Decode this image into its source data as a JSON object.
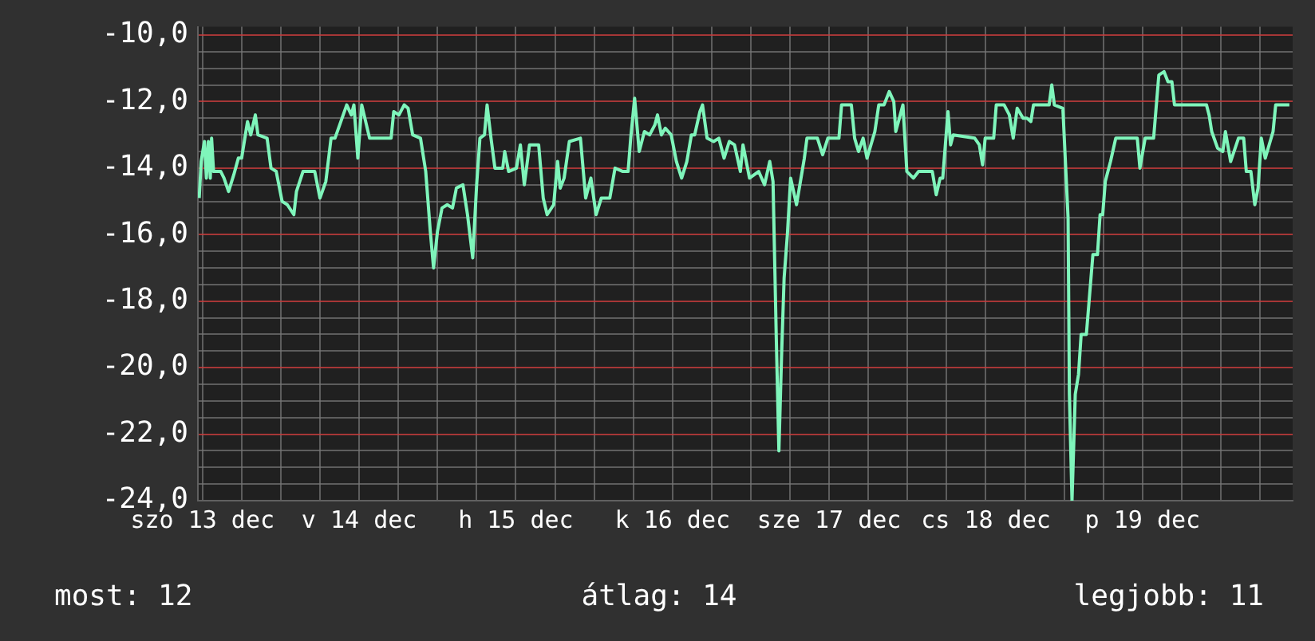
{
  "chart_data": {
    "type": "line",
    "marker": "none",
    "grid": true,
    "annotations": [
      "most: 12",
      "átlag: 14",
      "legjobb: 11"
    ],
    "x": [
      "--12-12T23:30",
      "--12-12T23:48",
      "--12-13T00:18",
      "--12-13T00:36",
      "--12-13T00:54",
      "--12-13T01:12",
      "--12-13T01:24",
      "--12-13T01:42",
      "--12-13T02:48",
      "--12-13T03:18",
      "--12-13T04:00",
      "--12-13T04:48",
      "--12-13T05:30",
      "--12-13T06:00",
      "--12-13T06:54",
      "--12-13T07:24",
      "--12-13T08:06",
      "--12-13T08:30",
      "--12-13T09:54",
      "--12-13T10:30",
      "--12-13T11:18",
      "--12-13T12:12",
      "--12-13T13:00",
      "--12-13T14:00",
      "--12-13T14:24",
      "--12-13T15:24",
      "--12-13T17:12",
      "--12-13T18:00",
      "--12-13T18:54",
      "--12-13T19:42",
      "--12-13T20:18",
      "--12-13T22:06",
      "--12-13T22:48",
      "--12-13T23:12",
      "--12-13T23:48",
      "--12-14T00:24",
      "--12-14T01:36",
      "--12-14T04:54",
      "--12-14T05:18",
      "--12-14T06:06",
      "--12-14T06:54",
      "--12-14T07:30",
      "--12-14T08:12",
      "--12-14T09:24",
      "--12-14T10:12",
      "--12-14T10:54",
      "--12-14T11:24",
      "--12-14T12:00",
      "--12-14T12:42",
      "--12-14T13:30",
      "--12-14T14:18",
      "--12-14T14:54",
      "--12-14T15:54",
      "--12-14T16:36",
      "--12-14T17:24",
      "--12-14T18:00",
      "--12-14T18:30",
      "--12-14T19:12",
      "--12-14T19:36",
      "--12-14T20:12",
      "--12-14T20:48",
      "--12-14T22:00",
      "--12-14T22:18",
      "--12-14T22:54",
      "--12-15T00:06",
      "--12-15T00:42",
      "--12-15T01:18",
      "--12-15T02:06",
      "--12-15T02:42",
      "--12-15T03:30",
      "--12-15T04:12",
      "--12-15T04:48",
      "--12-15T05:48",
      "--12-15T06:24",
      "--12-15T06:48",
      "--12-15T07:24",
      "--12-15T08:12",
      "--12-15T09:54",
      "--12-15T10:42",
      "--12-15T11:30",
      "--12-15T12:18",
      "--12-15T13:06",
      "--12-15T14:24",
      "--12-15T15:12",
      "--12-15T16:24",
      "--12-15T17:12",
      "--12-15T17:36",
      "--12-15T18:12",
      "--12-15T18:54",
      "--12-15T19:42",
      "--12-15T20:30",
      "--12-15T21:18",
      "--12-15T21:42",
      "--12-15T22:18",
      "--12-15T22:54",
      "--12-15T23:48",
      "--12-16T00:36",
      "--12-16T01:24",
      "--12-16T02:12",
      "--12-16T02:54",
      "--12-16T03:24",
      "--12-16T04:12",
      "--12-16T04:36",
      "--12-16T05:18",
      "--12-16T06:18",
      "--12-16T07:06",
      "--12-16T07:54",
      "--12-16T08:42",
      "--12-16T09:30",
      "--12-16T10:24",
      "--12-16T10:48",
      "--12-16T11:48",
      "--12-16T13:12",
      "--12-16T14:06",
      "--12-16T14:54",
      "--12-16T15:24",
      "--12-16T15:54",
      "--12-16T16:18",
      "--12-16T16:42",
      "--12-16T17:06",
      "--12-16T17:36",
      "--12-16T18:06",
      "--12-16T19:00",
      "--12-16T20:12",
      "--12-16T20:36",
      "--12-16T22:12",
      "--12-16T23:00",
      "--12-16T23:48",
      "--12-17T01:30",
      "--12-17T01:54",
      "--12-17T03:24",
      "--12-17T03:54",
      "--12-17T04:30",
      "--12-17T05:12",
      "--12-17T05:48",
      "--12-17T07:00",
      "--12-17T07:36",
      "--12-17T08:24",
      "--12-17T09:12",
      "--12-17T09:54",
      "--12-17T10:12",
      "--12-17T11:18",
      "--12-17T11:54",
      "--12-17T12:54",
      "--12-17T13:42",
      "--12-17T15:48",
      "--12-17T16:24",
      "--12-17T17:00",
      "--12-17T17:24",
      "--12-17T18:12",
      "--12-17T18:36",
      "--12-17T19:00",
      "--12-17T22:18",
      "--12-17T23:00",
      "--12-17T23:30",
      "--12-17T23:54",
      "--12-18T01:12",
      "--12-18T01:36",
      "--12-18T02:48",
      "--12-18T03:36",
      "--12-18T04:12",
      "--12-18T04:48",
      "--12-18T05:42",
      "--12-18T06:18",
      "--12-18T06:54",
      "--12-18T07:18",
      "--12-18T09:42",
      "--12-18T10:06",
      "--12-18T10:30",
      "--12-18T11:48",
      "--12-18T12:36",
      "--12-18T12:48",
      "--12-18T13:12",
      "--12-18T13:42",
      "--12-18T14:12",
      "--12-18T14:36",
      "--12-18T15:24",
      "--12-18T15:54",
      "--12-18T16:24",
      "--12-18T17:06",
      "--12-18T17:30",
      "--12-18T17:54",
      "--12-18T18:18",
      "--12-18T19:06",
      "--12-18T19:54",
      "--12-18T23:12",
      "--12-18T23:36",
      "--12-19T00:24",
      "--12-19T01:42",
      "--12-19T02:30",
      "--12-19T03:18",
      "--12-19T03:54",
      "--12-19T04:30",
      "--12-19T04:54",
      "--12-19T09:48",
      "--12-19T10:12",
      "--12-19T10:36",
      "--12-19T11:30",
      "--12-19T12:18",
      "--12-19T12:42",
      "--12-19T13:30",
      "--12-19T14:42",
      "--12-19T15:30",
      "--12-19T15:54",
      "--12-19T16:36",
      "--12-19T17:12",
      "--12-19T17:42",
      "--12-19T18:12",
      "--12-19T18:48",
      "--12-19T20:00",
      "--12-19T20:24",
      "--12-19T22:30"
    ],
    "series": [
      {
        "color": "#7ff5bb",
        "values": [
          -14.9,
          -13.8,
          -13.2,
          -14.3,
          -13.2,
          -14.3,
          -13.1,
          -14.1,
          -14.1,
          -14.3,
          -14.7,
          -14.2,
          -13.7,
          -13.7,
          -12.6,
          -13.0,
          -12.4,
          -13.0,
          -13.1,
          -14.0,
          -14.1,
          -15.0,
          -15.1,
          -15.4,
          -14.7,
          -14.1,
          -14.1,
          -14.9,
          -14.4,
          -13.1,
          -13.1,
          -12.1,
          -12.4,
          -12.1,
          -13.7,
          -12.1,
          -13.1,
          -13.1,
          -12.3,
          -12.4,
          -12.1,
          -12.2,
          -13.0,
          -13.1,
          -14.1,
          -15.9,
          -17.0,
          -15.9,
          -15.2,
          -15.1,
          -15.2,
          -14.6,
          -14.5,
          -15.4,
          -16.7,
          -14.5,
          -13.1,
          -13.0,
          -12.1,
          -13.1,
          -14.0,
          -14.0,
          -13.5,
          -14.1,
          -14.0,
          -13.3,
          -14.5,
          -13.3,
          -13.3,
          -13.3,
          -14.9,
          -15.4,
          -15.1,
          -13.8,
          -14.6,
          -14.3,
          -13.2,
          -13.1,
          -14.9,
          -14.3,
          -15.4,
          -14.9,
          -14.9,
          -14.0,
          -14.1,
          -14.1,
          -13.1,
          -11.9,
          -13.5,
          -12.9,
          -13.0,
          -12.7,
          -12.4,
          -13.0,
          -12.8,
          -13.0,
          -13.8,
          -14.3,
          -13.8,
          -13.0,
          -13.0,
          -12.3,
          -12.1,
          -13.1,
          -13.2,
          -13.1,
          -13.7,
          -13.2,
          -13.3,
          -14.1,
          -13.3,
          -14.3,
          -14.1,
          -14.5,
          -13.8,
          -14.4,
          -19.1,
          -22.5,
          -19.7,
          -17.3,
          -16.0,
          -14.3,
          -15.1,
          -13.7,
          -13.1,
          -13.1,
          -13.6,
          -13.1,
          -13.1,
          -12.1,
          -12.1,
          -13.1,
          -13.5,
          -13.1,
          -13.7,
          -12.9,
          -12.1,
          -12.1,
          -11.7,
          -12.0,
          -12.9,
          -12.1,
          -14.1,
          -14.3,
          -14.1,
          -14.1,
          -14.8,
          -14.3,
          -14.3,
          -12.3,
          -13.3,
          -13.0,
          -13.1,
          -13.3,
          -13.9,
          -13.1,
          -13.1,
          -12.1,
          -12.1,
          -12.4,
          -13.1,
          -12.2,
          -12.5,
          -12.5,
          -12.6,
          -12.1,
          -12.1,
          -11.5,
          -12.1,
          -12.2,
          -15.5,
          -20.8,
          -24.0,
          -20.8,
          -20.2,
          -19.0,
          -19.0,
          -17.8,
          -16.6,
          -16.6,
          -15.4,
          -15.4,
          -14.4,
          -13.8,
          -13.1,
          -13.1,
          -14.0,
          -13.1,
          -13.1,
          -11.2,
          -11.1,
          -11.4,
          -11.4,
          -12.1,
          -12.1,
          -12.4,
          -12.9,
          -13.4,
          -13.5,
          -12.9,
          -13.8,
          -13.1,
          -13.1,
          -14.1,
          -14.1,
          -15.1,
          -14.6,
          -13.1,
          -13.7,
          -12.9,
          -12.1,
          -12.1
        ]
      }
    ],
    "xlim": [
      "--12-12T23:18",
      "--12-19T23:00"
    ],
    "xticks": [
      {
        "value": "--12-13",
        "label": "szo 13 dec"
      },
      {
        "value": "--12-13T06:00",
        "label": null
      },
      {
        "value": "--12-13T12:00",
        "label": null
      },
      {
        "value": "--12-13T18:00",
        "label": null
      },
      {
        "value": "--12-14",
        "label": "v 14 dec"
      },
      {
        "value": "--12-14T06:00",
        "label": null
      },
      {
        "value": "--12-14T12:00",
        "label": null
      },
      {
        "value": "--12-14T18:00",
        "label": null
      },
      {
        "value": "--12-15",
        "label": "h 15 dec"
      },
      {
        "value": "--12-15T06:00",
        "label": null
      },
      {
        "value": "--12-15T12:00",
        "label": null
      },
      {
        "value": "--12-15T18:00",
        "label": null
      },
      {
        "value": "--12-16",
        "label": "k 16 dec"
      },
      {
        "value": "--12-16T06:00",
        "label": null
      },
      {
        "value": "--12-16T12:00",
        "label": null
      },
      {
        "value": "--12-16T18:00",
        "label": null
      },
      {
        "value": "--12-17",
        "label": "sze 17 dec"
      },
      {
        "value": "--12-17T06:00",
        "label": null
      },
      {
        "value": "--12-17T12:00",
        "label": null
      },
      {
        "value": "--12-17T18:00",
        "label": null
      },
      {
        "value": "--12-18",
        "label": "cs 18 dec"
      },
      {
        "value": "--12-18T06:00",
        "label": null
      },
      {
        "value": "--12-18T12:00",
        "label": null
      },
      {
        "value": "--12-18T18:00",
        "label": null
      },
      {
        "value": "--12-19",
        "label": "p 19 dec"
      },
      {
        "value": "--12-19T06:00",
        "label": null
      },
      {
        "value": "--12-19T12:00",
        "label": null
      },
      {
        "value": "--12-19T18:00",
        "label": null
      }
    ],
    "ylim": [
      -24,
      -9.75
    ],
    "yticks": [
      {
        "value": -24,
        "label": "-24,0"
      },
      {
        "value": -23.5,
        "label": null
      },
      {
        "value": -23,
        "label": null
      },
      {
        "value": -22.5,
        "label": null
      },
      {
        "value": -22,
        "label": "-22,0"
      },
      {
        "value": -21.5,
        "label": null
      },
      {
        "value": -21,
        "label": null
      },
      {
        "value": -20.5,
        "label": null
      },
      {
        "value": -20,
        "label": "-20,0"
      },
      {
        "value": -19.5,
        "label": null
      },
      {
        "value": -19,
        "label": null
      },
      {
        "value": -18.5,
        "label": null
      },
      {
        "value": -18,
        "label": "-18,0"
      },
      {
        "value": -17.5,
        "label": null
      },
      {
        "value": -17,
        "label": null
      },
      {
        "value": -16.5,
        "label": null
      },
      {
        "value": -16,
        "label": "-16,0"
      },
      {
        "value": -15.5,
        "label": null
      },
      {
        "value": -15,
        "label": null
      },
      {
        "value": -14.5,
        "label": null
      },
      {
        "value": -14,
        "label": "-14,0"
      },
      {
        "value": -13.5,
        "label": null
      },
      {
        "value": -13,
        "label": null
      },
      {
        "value": -12.5,
        "label": null
      },
      {
        "value": -12,
        "label": "-12,0"
      },
      {
        "value": -11.5,
        "label": null
      },
      {
        "value": -11,
        "label": null
      },
      {
        "value": -10.5,
        "label": null
      },
      {
        "value": -10,
        "label": "-10,0"
      }
    ]
  }
}
